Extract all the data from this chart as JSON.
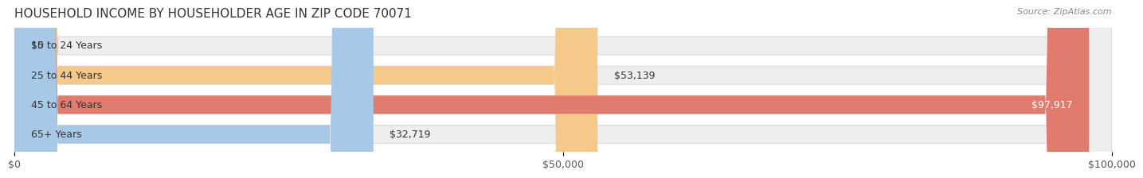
{
  "title": "HOUSEHOLD INCOME BY HOUSEHOLDER AGE IN ZIP CODE 70071",
  "source": "Source: ZipAtlas.com",
  "categories": [
    "15 to 24 Years",
    "25 to 44 Years",
    "45 to 64 Years",
    "65+ Years"
  ],
  "values": [
    0,
    53139,
    97917,
    32719
  ],
  "bar_colors": [
    "#f28b9b",
    "#f5c98a",
    "#e07b6e",
    "#a8c8e8"
  ],
  "bar_bg_color": "#eeeeee",
  "x_max": 100000,
  "x_ticks": [
    0,
    50000,
    100000
  ],
  "x_tick_labels": [
    "$0",
    "$50,000",
    "$100,000"
  ],
  "value_labels": [
    "$0",
    "$53,139",
    "$97,917",
    "$32,719"
  ],
  "background_color": "#ffffff",
  "title_fontsize": 11,
  "label_fontsize": 9,
  "tick_fontsize": 9,
  "source_fontsize": 8
}
